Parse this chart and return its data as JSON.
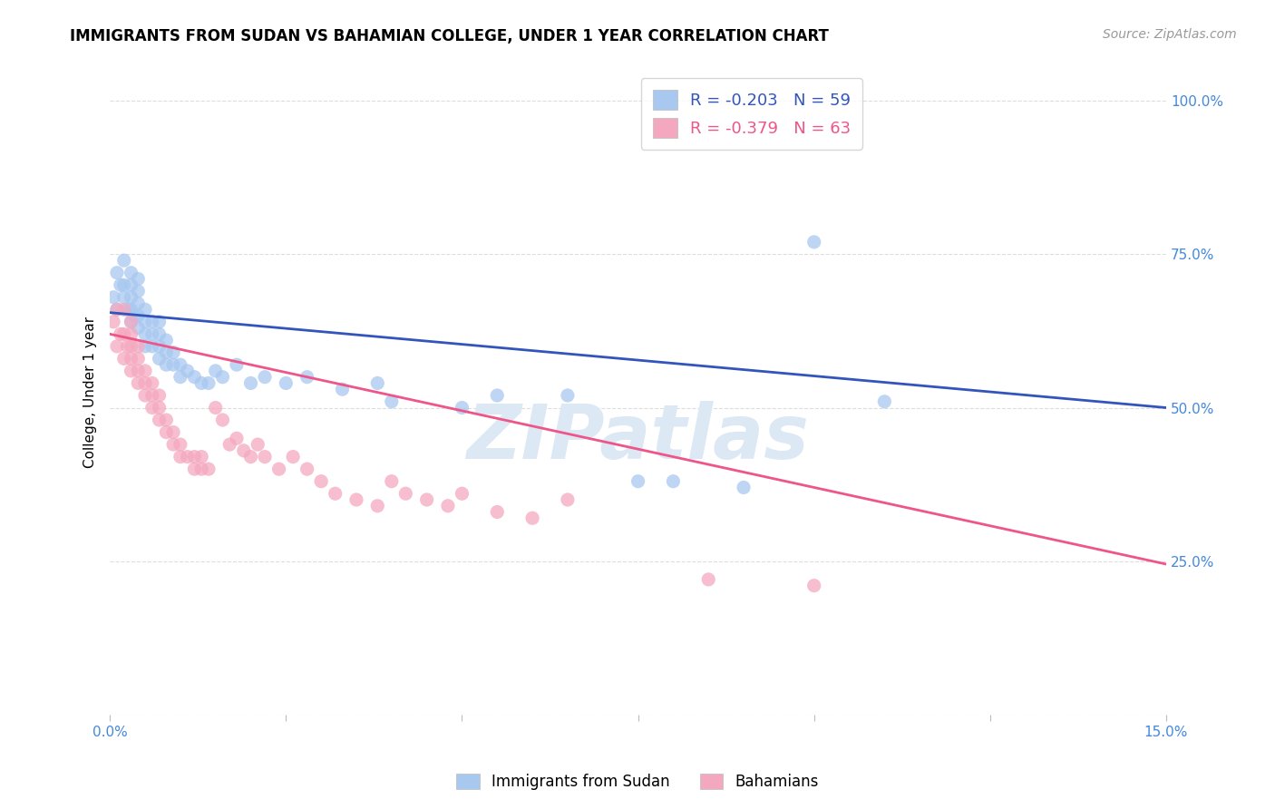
{
  "title": "IMMIGRANTS FROM SUDAN VS BAHAMIAN COLLEGE, UNDER 1 YEAR CORRELATION CHART",
  "source": "Source: ZipAtlas.com",
  "ylabel": "College, Under 1 year",
  "yticks": [
    "",
    "25.0%",
    "50.0%",
    "75.0%",
    "100.0%"
  ],
  "ytick_vals": [
    0.0,
    0.25,
    0.5,
    0.75,
    1.0
  ],
  "xlim": [
    0.0,
    0.15
  ],
  "ylim": [
    0.0,
    1.05
  ],
  "watermark": "ZIPatlas",
  "legend_R_blue": "R = -0.203",
  "legend_N_blue": "N = 59",
  "legend_R_pink": "R = -0.379",
  "legend_N_pink": "N = 63",
  "legend_label_blue": "Immigrants from Sudan",
  "legend_label_pink": "Bahamians",
  "blue_color": "#A8C8F0",
  "pink_color": "#F4A8C0",
  "line_blue": "#3355BB",
  "line_pink": "#EE5588",
  "blue_scatter_x": [
    0.0005,
    0.001,
    0.001,
    0.0015,
    0.002,
    0.002,
    0.002,
    0.0025,
    0.003,
    0.003,
    0.003,
    0.003,
    0.003,
    0.0035,
    0.004,
    0.004,
    0.004,
    0.004,
    0.004,
    0.005,
    0.005,
    0.005,
    0.005,
    0.006,
    0.006,
    0.006,
    0.007,
    0.007,
    0.007,
    0.007,
    0.008,
    0.008,
    0.008,
    0.009,
    0.009,
    0.01,
    0.01,
    0.011,
    0.012,
    0.013,
    0.014,
    0.015,
    0.016,
    0.018,
    0.02,
    0.022,
    0.025,
    0.028,
    0.033,
    0.038,
    0.04,
    0.05,
    0.055,
    0.065,
    0.075,
    0.08,
    0.09,
    0.1,
    0.11
  ],
  "blue_scatter_y": [
    0.68,
    0.66,
    0.72,
    0.7,
    0.68,
    0.7,
    0.74,
    0.66,
    0.64,
    0.66,
    0.68,
    0.7,
    0.72,
    0.65,
    0.63,
    0.65,
    0.67,
    0.69,
    0.71,
    0.6,
    0.62,
    0.64,
    0.66,
    0.6,
    0.62,
    0.64,
    0.58,
    0.6,
    0.62,
    0.64,
    0.57,
    0.59,
    0.61,
    0.57,
    0.59,
    0.55,
    0.57,
    0.56,
    0.55,
    0.54,
    0.54,
    0.56,
    0.55,
    0.57,
    0.54,
    0.55,
    0.54,
    0.55,
    0.53,
    0.54,
    0.51,
    0.5,
    0.52,
    0.52,
    0.38,
    0.38,
    0.37,
    0.77,
    0.51
  ],
  "pink_scatter_x": [
    0.0005,
    0.001,
    0.001,
    0.0015,
    0.002,
    0.002,
    0.002,
    0.0025,
    0.003,
    0.003,
    0.003,
    0.003,
    0.003,
    0.004,
    0.004,
    0.004,
    0.004,
    0.005,
    0.005,
    0.005,
    0.006,
    0.006,
    0.006,
    0.007,
    0.007,
    0.007,
    0.008,
    0.008,
    0.009,
    0.009,
    0.01,
    0.01,
    0.011,
    0.012,
    0.012,
    0.013,
    0.013,
    0.014,
    0.015,
    0.016,
    0.017,
    0.018,
    0.019,
    0.02,
    0.021,
    0.022,
    0.024,
    0.026,
    0.028,
    0.03,
    0.032,
    0.035,
    0.038,
    0.04,
    0.042,
    0.045,
    0.048,
    0.05,
    0.055,
    0.06,
    0.065,
    0.085,
    0.1
  ],
  "pink_scatter_y": [
    0.64,
    0.6,
    0.66,
    0.62,
    0.58,
    0.62,
    0.66,
    0.6,
    0.56,
    0.58,
    0.6,
    0.62,
    0.64,
    0.54,
    0.56,
    0.58,
    0.6,
    0.52,
    0.54,
    0.56,
    0.5,
    0.52,
    0.54,
    0.48,
    0.5,
    0.52,
    0.46,
    0.48,
    0.44,
    0.46,
    0.42,
    0.44,
    0.42,
    0.4,
    0.42,
    0.4,
    0.42,
    0.4,
    0.5,
    0.48,
    0.44,
    0.45,
    0.43,
    0.42,
    0.44,
    0.42,
    0.4,
    0.42,
    0.4,
    0.38,
    0.36,
    0.35,
    0.34,
    0.38,
    0.36,
    0.35,
    0.34,
    0.36,
    0.33,
    0.32,
    0.35,
    0.22,
    0.21
  ],
  "blue_line_x": [
    0.0,
    0.15
  ],
  "blue_line_y": [
    0.655,
    0.5
  ],
  "pink_line_x": [
    0.0,
    0.15
  ],
  "pink_line_y": [
    0.62,
    0.245
  ],
  "grid_color": "#DDDDDD",
  "background_color": "#FFFFFF",
  "title_fontsize": 12,
  "axis_fontsize": 11,
  "tick_fontsize": 11,
  "source_fontsize": 10,
  "watermark_fontsize": 60,
  "watermark_color": "#DDE8F5",
  "figsize": [
    14.06,
    8.92
  ],
  "dpi": 100
}
